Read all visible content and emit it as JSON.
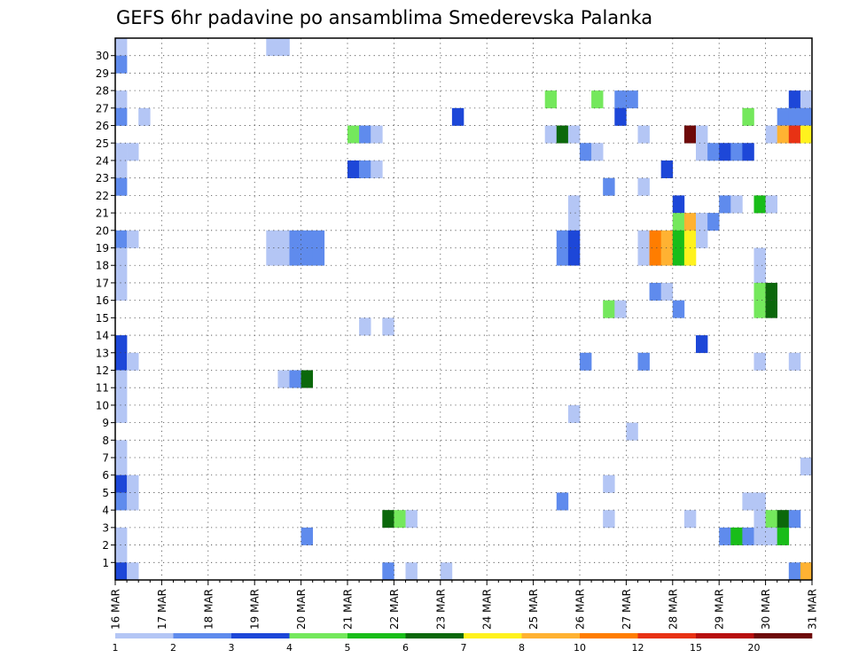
{
  "chart_data": {
    "type": "heatmap",
    "title": "GEFS 6hr padavine po ansamblima Smederevska Palanka",
    "x_tick_labels": [
      "16 MAR",
      "17 MAR",
      "18 MAR",
      "19 MAR",
      "20 MAR",
      "21 MAR",
      "22 MAR",
      "23 MAR",
      "24 MAR",
      "25 MAR",
      "26 MAR",
      "27 MAR",
      "28 MAR",
      "29 MAR",
      "30 MAR",
      "31 MAR"
    ],
    "y_tick_labels": [
      "1",
      "2",
      "3",
      "4",
      "5",
      "6",
      "7",
      "8",
      "9",
      "10",
      "11",
      "12",
      "13",
      "14",
      "15",
      "16",
      "17",
      "18",
      "19",
      "20",
      "21",
      "22",
      "23",
      "24",
      "25",
      "26",
      "27",
      "28",
      "29",
      "30"
    ],
    "x_axis": "6-hour time steps from 16 MAR 00z to 31 MAR 00z",
    "y_axis": "ensemble member",
    "grid": true,
    "colorbar": {
      "labels": [
        "1",
        "2",
        "3",
        "4",
        "5",
        "6",
        "7",
        "8",
        "10",
        "12",
        "15",
        "20"
      ],
      "colors": [
        "#b4c6f5",
        "#5f8bed",
        "#1d47d8",
        "#74e85c",
        "#19bd19",
        "#0b680b",
        "#fff21e",
        "#ffb232",
        "#ff7d00",
        "#e83214",
        "#b80f0f",
        "#6e0a0a"
      ]
    },
    "cells": [
      {
        "m": 30,
        "s": 1,
        "c": 0
      },
      {
        "m": 30,
        "s": 14,
        "c": 0
      },
      {
        "m": 30,
        "s": 15,
        "c": 0
      },
      {
        "m": 29,
        "s": 1,
        "c": 1
      },
      {
        "m": 27,
        "s": 1,
        "c": 0
      },
      {
        "m": 27,
        "s": 38,
        "c": 3
      },
      {
        "m": 27,
        "s": 42,
        "c": 3
      },
      {
        "m": 27,
        "s": 44,
        "c": 1
      },
      {
        "m": 27,
        "s": 45,
        "c": 1
      },
      {
        "m": 27,
        "s": 59,
        "c": 2
      },
      {
        "m": 27,
        "s": 60,
        "c": 0
      },
      {
        "m": 26,
        "s": 1,
        "c": 1
      },
      {
        "m": 26,
        "s": 3,
        "c": 0
      },
      {
        "m": 26,
        "s": 30,
        "c": 2
      },
      {
        "m": 26,
        "s": 44,
        "c": 2
      },
      {
        "m": 26,
        "s": 55,
        "c": 3
      },
      {
        "m": 26,
        "s": 58,
        "c": 1
      },
      {
        "m": 26,
        "s": 59,
        "c": 1
      },
      {
        "m": 26,
        "s": 60,
        "c": 1
      },
      {
        "m": 25,
        "s": 21,
        "c": 3
      },
      {
        "m": 25,
        "s": 22,
        "c": 1
      },
      {
        "m": 25,
        "s": 23,
        "c": 0
      },
      {
        "m": 25,
        "s": 38,
        "c": 0
      },
      {
        "m": 25,
        "s": 39,
        "c": 5
      },
      {
        "m": 25,
        "s": 40,
        "c": 0
      },
      {
        "m": 25,
        "s": 46,
        "c": 0
      },
      {
        "m": 25,
        "s": 50,
        "c": 11
      },
      {
        "m": 25,
        "s": 51,
        "c": 0
      },
      {
        "m": 25,
        "s": 57,
        "c": 0
      },
      {
        "m": 25,
        "s": 58,
        "c": 7
      },
      {
        "m": 25,
        "s": 59,
        "c": 9
      },
      {
        "m": 25,
        "s": 60,
        "c": 6
      },
      {
        "m": 24,
        "s": 1,
        "c": 0
      },
      {
        "m": 24,
        "s": 2,
        "c": 0
      },
      {
        "m": 24,
        "s": 41,
        "c": 1
      },
      {
        "m": 24,
        "s": 42,
        "c": 0
      },
      {
        "m": 24,
        "s": 51,
        "c": 0
      },
      {
        "m": 24,
        "s": 52,
        "c": 1
      },
      {
        "m": 24,
        "s": 53,
        "c": 2
      },
      {
        "m": 24,
        "s": 54,
        "c": 1
      },
      {
        "m": 24,
        "s": 55,
        "c": 2
      },
      {
        "m": 23,
        "s": 1,
        "c": 0
      },
      {
        "m": 23,
        "s": 21,
        "c": 2
      },
      {
        "m": 23,
        "s": 22,
        "c": 1
      },
      {
        "m": 23,
        "s": 23,
        "c": 0
      },
      {
        "m": 23,
        "s": 48,
        "c": 2
      },
      {
        "m": 22,
        "s": 1,
        "c": 1
      },
      {
        "m": 22,
        "s": 43,
        "c": 1
      },
      {
        "m": 22,
        "s": 46,
        "c": 0
      },
      {
        "m": 21,
        "s": 40,
        "c": 0
      },
      {
        "m": 21,
        "s": 49,
        "c": 2
      },
      {
        "m": 21,
        "s": 53,
        "c": 1
      },
      {
        "m": 21,
        "s": 54,
        "c": 0
      },
      {
        "m": 21,
        "s": 56,
        "c": 4
      },
      {
        "m": 21,
        "s": 57,
        "c": 0
      },
      {
        "m": 20,
        "s": 40,
        "c": 0
      },
      {
        "m": 20,
        "s": 49,
        "c": 3
      },
      {
        "m": 20,
        "s": 50,
        "c": 7
      },
      {
        "m": 20,
        "s": 51,
        "c": 0
      },
      {
        "m": 20,
        "s": 52,
        "c": 1
      },
      {
        "m": 19,
        "s": 1,
        "c": 1
      },
      {
        "m": 19,
        "s": 2,
        "c": 0
      },
      {
        "m": 19,
        "s": 14,
        "c": 0
      },
      {
        "m": 19,
        "s": 15,
        "c": 0
      },
      {
        "m": 19,
        "s": 16,
        "c": 1
      },
      {
        "m": 19,
        "s": 17,
        "c": 1
      },
      {
        "m": 19,
        "s": 18,
        "c": 1
      },
      {
        "m": 19,
        "s": 39,
        "c": 1
      },
      {
        "m": 19,
        "s": 40,
        "c": 2
      },
      {
        "m": 19,
        "s": 46,
        "c": 0
      },
      {
        "m": 19,
        "s": 47,
        "c": 8
      },
      {
        "m": 19,
        "s": 48,
        "c": 7
      },
      {
        "m": 19,
        "s": 49,
        "c": 4
      },
      {
        "m": 19,
        "s": 50,
        "c": 6
      },
      {
        "m": 19,
        "s": 51,
        "c": 0
      },
      {
        "m": 18,
        "s": 1,
        "c": 0
      },
      {
        "m": 18,
        "s": 14,
        "c": 0
      },
      {
        "m": 18,
        "s": 15,
        "c": 0
      },
      {
        "m": 18,
        "s": 16,
        "c": 1
      },
      {
        "m": 18,
        "s": 17,
        "c": 1
      },
      {
        "m": 18,
        "s": 18,
        "c": 1
      },
      {
        "m": 18,
        "s": 39,
        "c": 1
      },
      {
        "m": 18,
        "s": 40,
        "c": 2
      },
      {
        "m": 18,
        "s": 46,
        "c": 0
      },
      {
        "m": 18,
        "s": 47,
        "c": 8
      },
      {
        "m": 18,
        "s": 48,
        "c": 7
      },
      {
        "m": 18,
        "s": 49,
        "c": 4
      },
      {
        "m": 18,
        "s": 50,
        "c": 6
      },
      {
        "m": 18,
        "s": 56,
        "c": 0
      },
      {
        "m": 17,
        "s": 1,
        "c": 0
      },
      {
        "m": 17,
        "s": 56,
        "c": 0
      },
      {
        "m": 16,
        "s": 1,
        "c": 0
      },
      {
        "m": 16,
        "s": 47,
        "c": 1
      },
      {
        "m": 16,
        "s": 48,
        "c": 0
      },
      {
        "m": 16,
        "s": 56,
        "c": 3
      },
      {
        "m": 16,
        "s": 57,
        "c": 5
      },
      {
        "m": 15,
        "s": 43,
        "c": 3
      },
      {
        "m": 15,
        "s": 44,
        "c": 0
      },
      {
        "m": 15,
        "s": 49,
        "c": 1
      },
      {
        "m": 15,
        "s": 56,
        "c": 3
      },
      {
        "m": 15,
        "s": 57,
        "c": 5
      },
      {
        "m": 14,
        "s": 22,
        "c": 0
      },
      {
        "m": 14,
        "s": 24,
        "c": 0
      },
      {
        "m": 13,
        "s": 1,
        "c": 2
      },
      {
        "m": 13,
        "s": 51,
        "c": 2
      },
      {
        "m": 12,
        "s": 1,
        "c": 2
      },
      {
        "m": 12,
        "s": 2,
        "c": 0
      },
      {
        "m": 12,
        "s": 41,
        "c": 1
      },
      {
        "m": 12,
        "s": 46,
        "c": 1
      },
      {
        "m": 12,
        "s": 56,
        "c": 0
      },
      {
        "m": 12,
        "s": 59,
        "c": 0
      },
      {
        "m": 11,
        "s": 1,
        "c": 0
      },
      {
        "m": 11,
        "s": 15,
        "c": 0
      },
      {
        "m": 11,
        "s": 16,
        "c": 1
      },
      {
        "m": 11,
        "s": 17,
        "c": 5
      },
      {
        "m": 10,
        "s": 1,
        "c": 0
      },
      {
        "m": 9,
        "s": 1,
        "c": 0
      },
      {
        "m": 9,
        "s": 40,
        "c": 0
      },
      {
        "m": 8,
        "s": 45,
        "c": 0
      },
      {
        "m": 7,
        "s": 1,
        "c": 0
      },
      {
        "m": 6,
        "s": 1,
        "c": 0
      },
      {
        "m": 6,
        "s": 60,
        "c": 0
      },
      {
        "m": 5,
        "s": 1,
        "c": 2
      },
      {
        "m": 5,
        "s": 2,
        "c": 0
      },
      {
        "m": 5,
        "s": 43,
        "c": 0
      },
      {
        "m": 4,
        "s": 1,
        "c": 1
      },
      {
        "m": 4,
        "s": 2,
        "c": 0
      },
      {
        "m": 4,
        "s": 39,
        "c": 1
      },
      {
        "m": 4,
        "s": 55,
        "c": 0
      },
      {
        "m": 4,
        "s": 56,
        "c": 0
      },
      {
        "m": 3,
        "s": 24,
        "c": 5
      },
      {
        "m": 3,
        "s": 25,
        "c": 3
      },
      {
        "m": 3,
        "s": 26,
        "c": 0
      },
      {
        "m": 3,
        "s": 43,
        "c": 0
      },
      {
        "m": 3,
        "s": 50,
        "c": 0
      },
      {
        "m": 3,
        "s": 56,
        "c": 0
      },
      {
        "m": 3,
        "s": 57,
        "c": 3
      },
      {
        "m": 3,
        "s": 58,
        "c": 5
      },
      {
        "m": 3,
        "s": 59,
        "c": 1
      },
      {
        "m": 2,
        "s": 1,
        "c": 0
      },
      {
        "m": 2,
        "s": 17,
        "c": 1
      },
      {
        "m": 2,
        "s": 53,
        "c": 1
      },
      {
        "m": 2,
        "s": 54,
        "c": 4
      },
      {
        "m": 2,
        "s": 55,
        "c": 1
      },
      {
        "m": 2,
        "s": 56,
        "c": 0
      },
      {
        "m": 2,
        "s": 57,
        "c": 0
      },
      {
        "m": 2,
        "s": 58,
        "c": 4
      },
      {
        "m": 1,
        "s": 1,
        "c": 0
      },
      {
        "m": 0,
        "s": 1,
        "c": 2
      },
      {
        "m": 0,
        "s": 2,
        "c": 0
      },
      {
        "m": 0,
        "s": 24,
        "c": 1
      },
      {
        "m": 0,
        "s": 26,
        "c": 0
      },
      {
        "m": 0,
        "s": 29,
        "c": 0
      },
      {
        "m": 0,
        "s": 59,
        "c": 1
      },
      {
        "m": 0,
        "s": 60,
        "c": 7
      }
    ]
  }
}
